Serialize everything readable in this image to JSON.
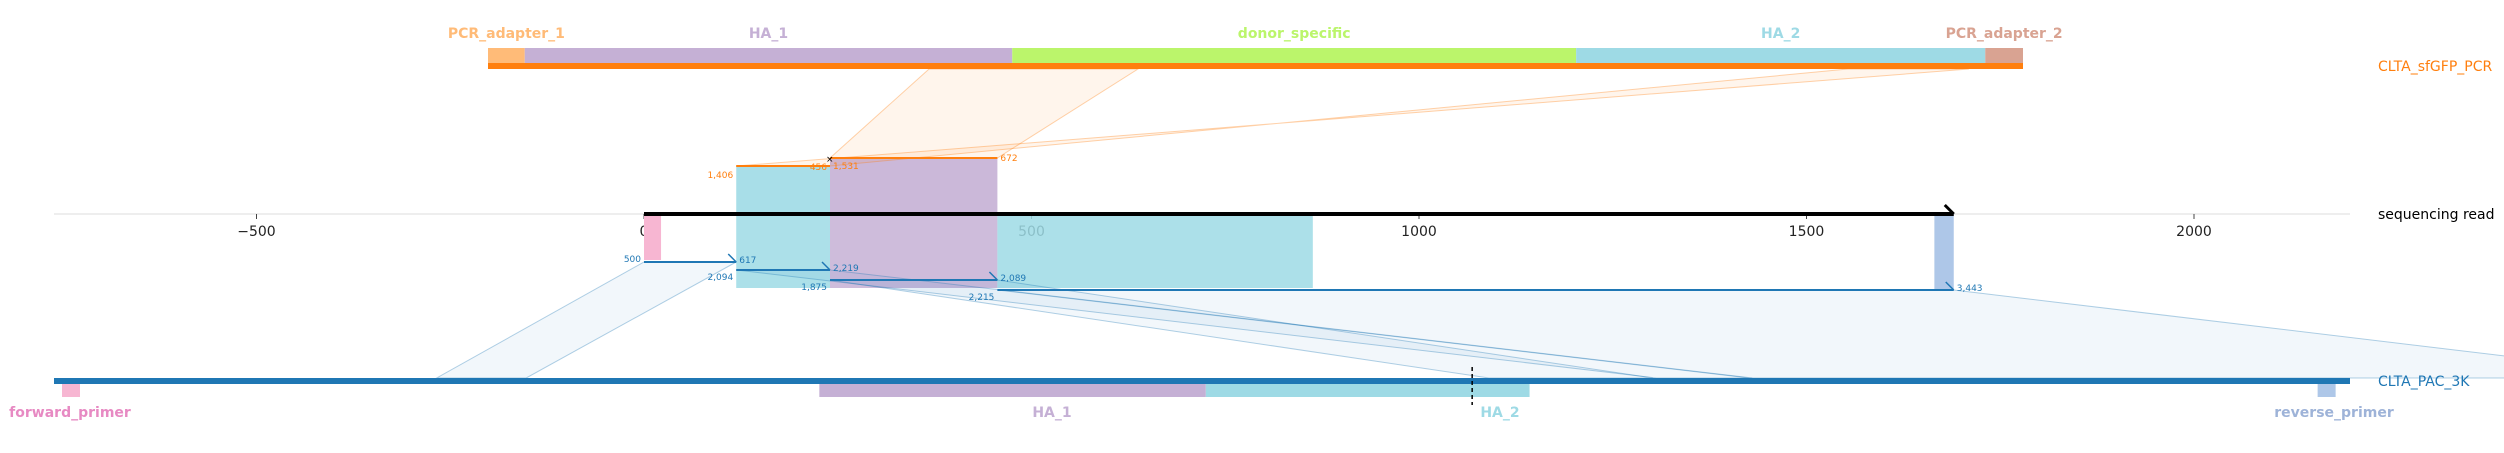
{
  "target": {
    "name": "CLTA_sfGFP_PCR",
    "color": "#ff7f0e",
    "length": 1587,
    "features": [
      {
        "label": "PCR_adapter_1",
        "start": 0,
        "end": 38,
        "color": "#ffbb78"
      },
      {
        "label": "HA_1",
        "start": 38,
        "end": 542,
        "color": "#c5b0d5"
      },
      {
        "label": "donor_specific",
        "start": 542,
        "end": 1125,
        "color": "#bbf56b"
      },
      {
        "label": "HA_2",
        "start": 1125,
        "end": 1548,
        "color": "#9edae5"
      },
      {
        "label": "PCR_adapter_2",
        "start": 1548,
        "end": 1587,
        "color": "#d9a392"
      }
    ]
  },
  "read": {
    "name": "sequencing read",
    "length": 1690,
    "axis_ticks": [
      -500,
      0,
      500,
      1000,
      1500,
      2000
    ],
    "axis_min": -760,
    "axis_max": 2200
  },
  "reference": {
    "name": "CLTA_PAC_3K",
    "color": "#1f77b4",
    "start": 0,
    "end": 3000,
    "cut_site": 1853,
    "features": [
      {
        "label": "forward_primer",
        "start": 0,
        "end": 22,
        "color": "#f7b6d2",
        "label_color": "#e78ac3"
      },
      {
        "label": "HA_1",
        "start": 1000,
        "end": 1505,
        "color": "#c5b0d5",
        "label_color": "#c5b0d5"
      },
      {
        "label": "HA_2",
        "start": 1505,
        "end": 1928,
        "color": "#9edae5",
        "label_color": "#9edae5"
      },
      {
        "label": "reverse_primer",
        "start": 2976,
        "end": 2998,
        "color": "#aec7e8",
        "label_color": "#9eb3d8"
      }
    ]
  },
  "read_features": [
    {
      "label": "forward_primer",
      "start": 0,
      "end": 22,
      "color": "#f7b6d2"
    },
    {
      "label": "reverse_primer",
      "start": 1665,
      "end": 1690,
      "color": "#aec7e8"
    }
  ],
  "target_alignments": [
    {
      "read_start": 119,
      "read_end": 240,
      "ref_start_label": "1,406",
      "ref_end_label": "1,531",
      "ref_start": 1406,
      "ref_end": 1531,
      "strand": "-"
    },
    {
      "read_start": 240,
      "read_end": 456,
      "ref_start_label": "456",
      "ref_end_label": "672",
      "ref_start": 456,
      "ref_end": 672,
      "strand": "+"
    }
  ],
  "ref_alignments": [
    {
      "read_start": 0,
      "read_end": 119,
      "ref_start_label": "500",
      "ref_end_label": "617",
      "ref_start": 500,
      "ref_end": 617,
      "strand": "+"
    },
    {
      "read_start": 119,
      "read_end": 240,
      "ref_start_label": "2,094",
      "ref_end_label": "2,219",
      "ref_start": 2094,
      "ref_end": 2219,
      "strand": "+"
    },
    {
      "read_start": 240,
      "read_end": 456,
      "ref_start_label": "1,875",
      "ref_end_label": "2,089",
      "ref_start": 1875,
      "ref_end": 2089,
      "strand": "+"
    },
    {
      "read_start": 456,
      "read_end": 1690,
      "ref_start_label": "2,215",
      "ref_end_label": "3,443",
      "ref_start": 2215,
      "ref_end": 3443,
      "strand": "+"
    }
  ],
  "highlight_regions": [
    {
      "read_start": 119,
      "read_end": 240,
      "color": "#9edae5"
    },
    {
      "read_start": 240,
      "read_end": 456,
      "color": "#c5b0d5"
    },
    {
      "read_start": 456,
      "read_end": 863,
      "color": "#9edae5"
    }
  ]
}
